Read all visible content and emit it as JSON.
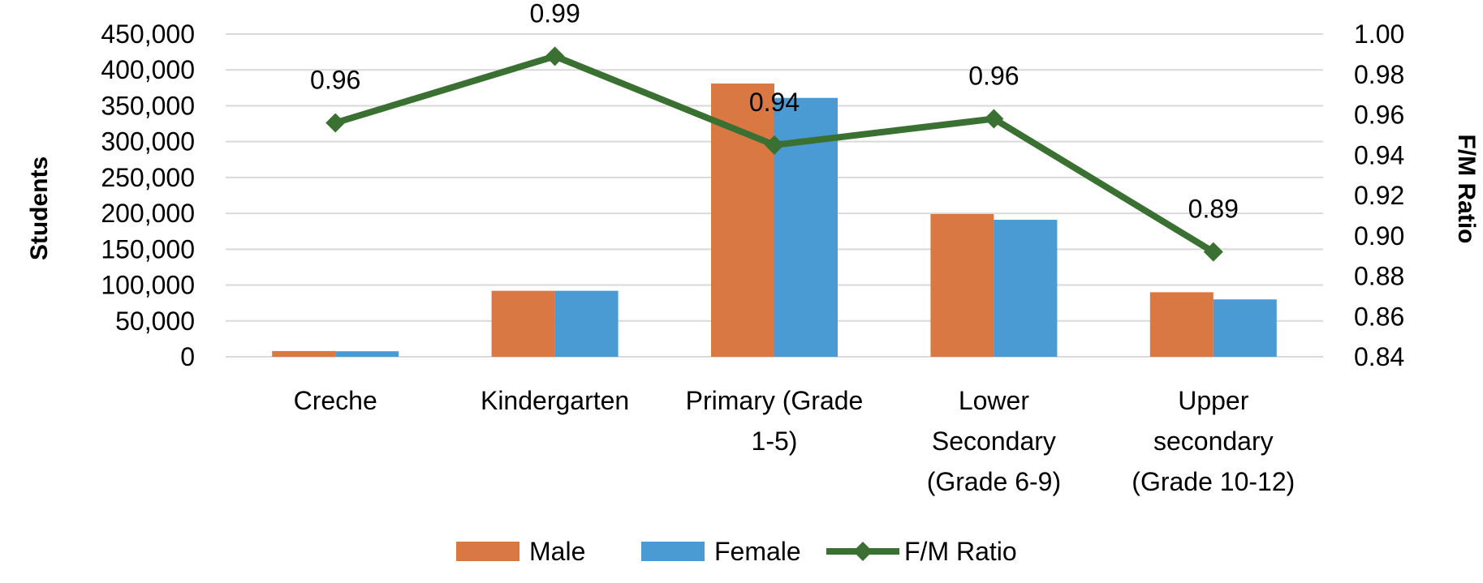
{
  "chart_data": {
    "type": "bar",
    "title": "",
    "categories": [
      [
        "Creche"
      ],
      [
        "Kindergarten"
      ],
      [
        "Primary (Grade",
        "1-5)"
      ],
      [
        "Lower",
        "Secondary",
        "(Grade 6-9)"
      ],
      [
        "Upper",
        "secondary",
        "(Grade 10-12)"
      ]
    ],
    "series": [
      {
        "name": "Male",
        "type": "bar",
        "axis": "left",
        "color": "#d97843",
        "values": [
          8000,
          92000,
          381000,
          199000,
          90000
        ]
      },
      {
        "name": "Female",
        "type": "bar",
        "axis": "left",
        "color": "#4a9ad4",
        "values": [
          7700,
          92000,
          361000,
          191000,
          80000
        ]
      },
      {
        "name": "F/M Ratio",
        "type": "line",
        "axis": "right",
        "color": "#3a7133",
        "marker": "diamond",
        "values": [
          0.956,
          0.989,
          0.945,
          0.958,
          0.892
        ],
        "labels": [
          "0.96",
          "0.99",
          "0.94",
          "0.96",
          "0.89"
        ]
      }
    ],
    "y_left": {
      "label": "Students",
      "min": 0,
      "max": 450000,
      "ticks": [
        0,
        50000,
        100000,
        150000,
        200000,
        250000,
        300000,
        350000,
        400000,
        450000
      ],
      "tick_labels": [
        "0",
        "50,000",
        "100,000",
        "150,000",
        "200,000",
        "250,000",
        "300,000",
        "350,000",
        "400,000",
        "450,000"
      ]
    },
    "y_right": {
      "label": "F/M Ratio",
      "min": 0.84,
      "max": 1.0,
      "ticks": [
        0.84,
        0.86,
        0.88,
        0.9,
        0.92,
        0.94,
        0.96,
        0.98,
        1.0
      ],
      "tick_labels": [
        "0.84",
        "0.86",
        "0.88",
        "0.90",
        "0.92",
        "0.94",
        "0.96",
        "0.98",
        "1.00"
      ]
    },
    "grid": true,
    "legend": {
      "position": "bottom",
      "entries": [
        "Male",
        "Female",
        "F/M Ratio"
      ]
    }
  }
}
